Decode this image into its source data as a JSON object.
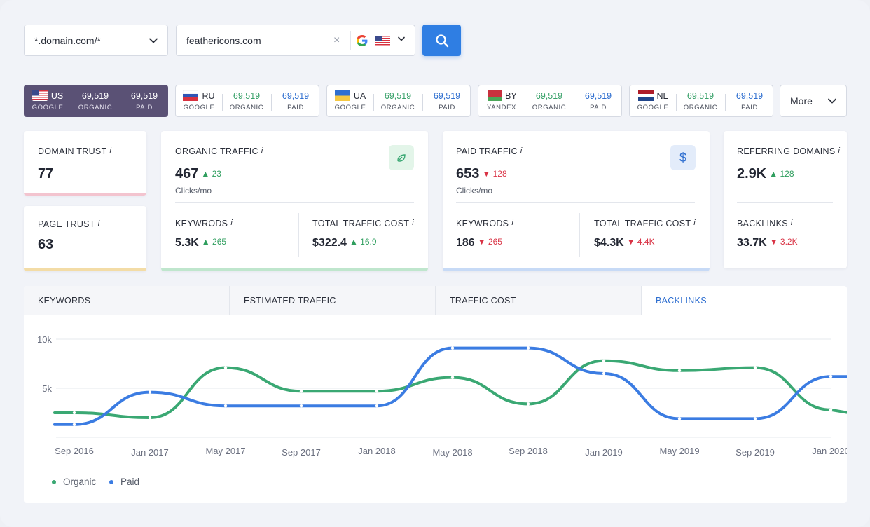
{
  "search": {
    "domain_mode": "*.domain.com/*",
    "query": "feathericons.com",
    "search_engine_icon": "google-icon",
    "country_flag_icon": "us-flag-icon"
  },
  "regions": [
    {
      "code": "US",
      "engine": "GOOGLE",
      "organic": "69,519",
      "organic_label": "ORGANIC",
      "paid": "69,519",
      "paid_label": "PAID",
      "flag": "us-flag-icon",
      "active": true
    },
    {
      "code": "RU",
      "engine": "GOOGLE",
      "organic": "69,519",
      "organic_label": "ORGANIC",
      "paid": "69,519",
      "paid_label": "PAID",
      "flag": "ru-flag-icon",
      "active": false
    },
    {
      "code": "UA",
      "engine": "GOOGLE",
      "organic": "69,519",
      "organic_label": "ORGANIC",
      "paid": "69,519",
      "paid_label": "PAID",
      "flag": "ua-flag-icon",
      "active": false
    },
    {
      "code": "BY",
      "engine": "YANDEX",
      "organic": "69,519",
      "organic_label": "ORGANIC",
      "paid": "69,519",
      "paid_label": "PAID",
      "flag": "by-flag-icon",
      "active": false
    },
    {
      "code": "NL",
      "engine": "GOOGLE",
      "organic": "69,519",
      "organic_label": "ORGANIC",
      "paid": "69,519",
      "paid_label": "PAID",
      "flag": "nl-flag-icon",
      "active": false
    }
  ],
  "more_label": "More",
  "metrics": {
    "domain_trust": {
      "label": "DOMAIN TRUST",
      "info": "i",
      "value": "77"
    },
    "page_trust": {
      "label": "PAGE TRUST",
      "info": "i",
      "value": "63"
    },
    "organic_traffic": {
      "label": "ORGANIC TRAFFIC",
      "info": "i",
      "value": "467",
      "delta": "23",
      "unit": "Clicks/mo",
      "keywords_label": "KEYWRODS",
      "keywords_value": "5.3K",
      "keywords_delta": "265",
      "cost_label": "TOTAL TRAFFIC COST",
      "cost_value": "$322.4",
      "cost_delta": "16.9",
      "icon": "leaf-icon"
    },
    "paid_traffic": {
      "label": "PAID TRAFFIC",
      "info": "i",
      "value": "653",
      "delta": "128",
      "unit": "Clicks/mo",
      "keywords_label": "KEYWRODS",
      "keywords_value": "186",
      "keywords_delta": "265",
      "cost_label": "TOTAL TRAFFIC COST",
      "cost_value": "$4.3K",
      "cost_delta": "4.4K",
      "icon": "dollar-icon"
    },
    "referring": {
      "label": "REFERRING DOMAINS",
      "info": "i",
      "value": "2.9K",
      "delta": "128",
      "backlinks_label": "BACKLINKS",
      "backlinks_value": "33.7K",
      "backlinks_delta": "3.2K"
    }
  },
  "tabs": [
    "KEYWORDS",
    "ESTIMATED TRAFFIC",
    "TRAFFIC COST",
    "BACKLINKS"
  ],
  "active_tab": "BACKLINKS",
  "colors": {
    "organic": "#3aa873",
    "paid": "#3b7ce2",
    "accent": "#2f7ee3",
    "active_region": "#5a5175"
  },
  "chart_data": {
    "type": "line",
    "x": [
      "Sep 2016",
      "Jan 2017",
      "May 2017",
      "Sep 2017",
      "Jan 2018",
      "May 2018",
      "Sep 2018",
      "Jan 2019",
      "May 2019",
      "Sep 2019",
      "Jan 2020"
    ],
    "yticks": [
      "10k",
      "5k"
    ],
    "ylim": [
      0,
      10000
    ],
    "grid": true,
    "legend_position": "bottom-left",
    "series": [
      {
        "name": "Organic",
        "values": [
          2500,
          2000,
          7100,
          4700,
          4700,
          6100,
          3400,
          7800,
          6800,
          7100,
          2800
        ]
      },
      {
        "name": "Paid",
        "values": [
          1300,
          4600,
          3200,
          3200,
          3200,
          9100,
          9100,
          6500,
          1900,
          1900,
          6200
        ]
      }
    ]
  }
}
